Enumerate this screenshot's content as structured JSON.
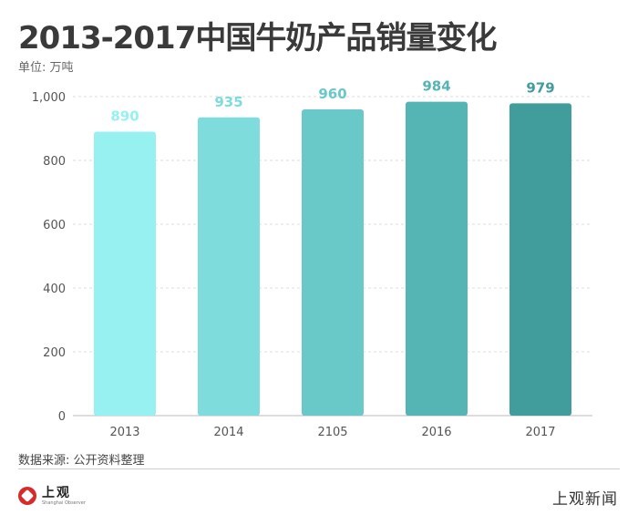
{
  "title": "2013-2017中国牛奶产品销量变化",
  "unit": "单位: 万吨",
  "source": "数据来源: 公开资料整理",
  "logo": {
    "cn": "上观",
    "en": "Shanghai Observer"
  },
  "watermark": "上观新闻",
  "chart_data": {
    "type": "bar",
    "title": "2013-2017中国牛奶产品销量变化",
    "ylabel": "单位: 万吨",
    "categories": [
      "2013",
      "2014",
      "2105",
      "2016",
      "2017"
    ],
    "values": [
      890,
      935,
      960,
      984,
      979
    ],
    "data_labels": [
      "890",
      "935",
      "960",
      "984",
      "979"
    ],
    "yticks": [
      "0",
      "200",
      "400",
      "600",
      "800",
      "1,000"
    ],
    "ytick_values": [
      0,
      200,
      400,
      600,
      800,
      1000
    ],
    "ylim": [
      0,
      1000
    ],
    "grid": true,
    "colors": [
      "#97f1f0",
      "#7fdcdc",
      "#69c9c9",
      "#55b4b4",
      "#419c9c"
    ],
    "label_colors": [
      "#97f1f0",
      "#7fdcdc",
      "#69c9c9",
      "#55b4b4",
      "#419c9c"
    ]
  }
}
